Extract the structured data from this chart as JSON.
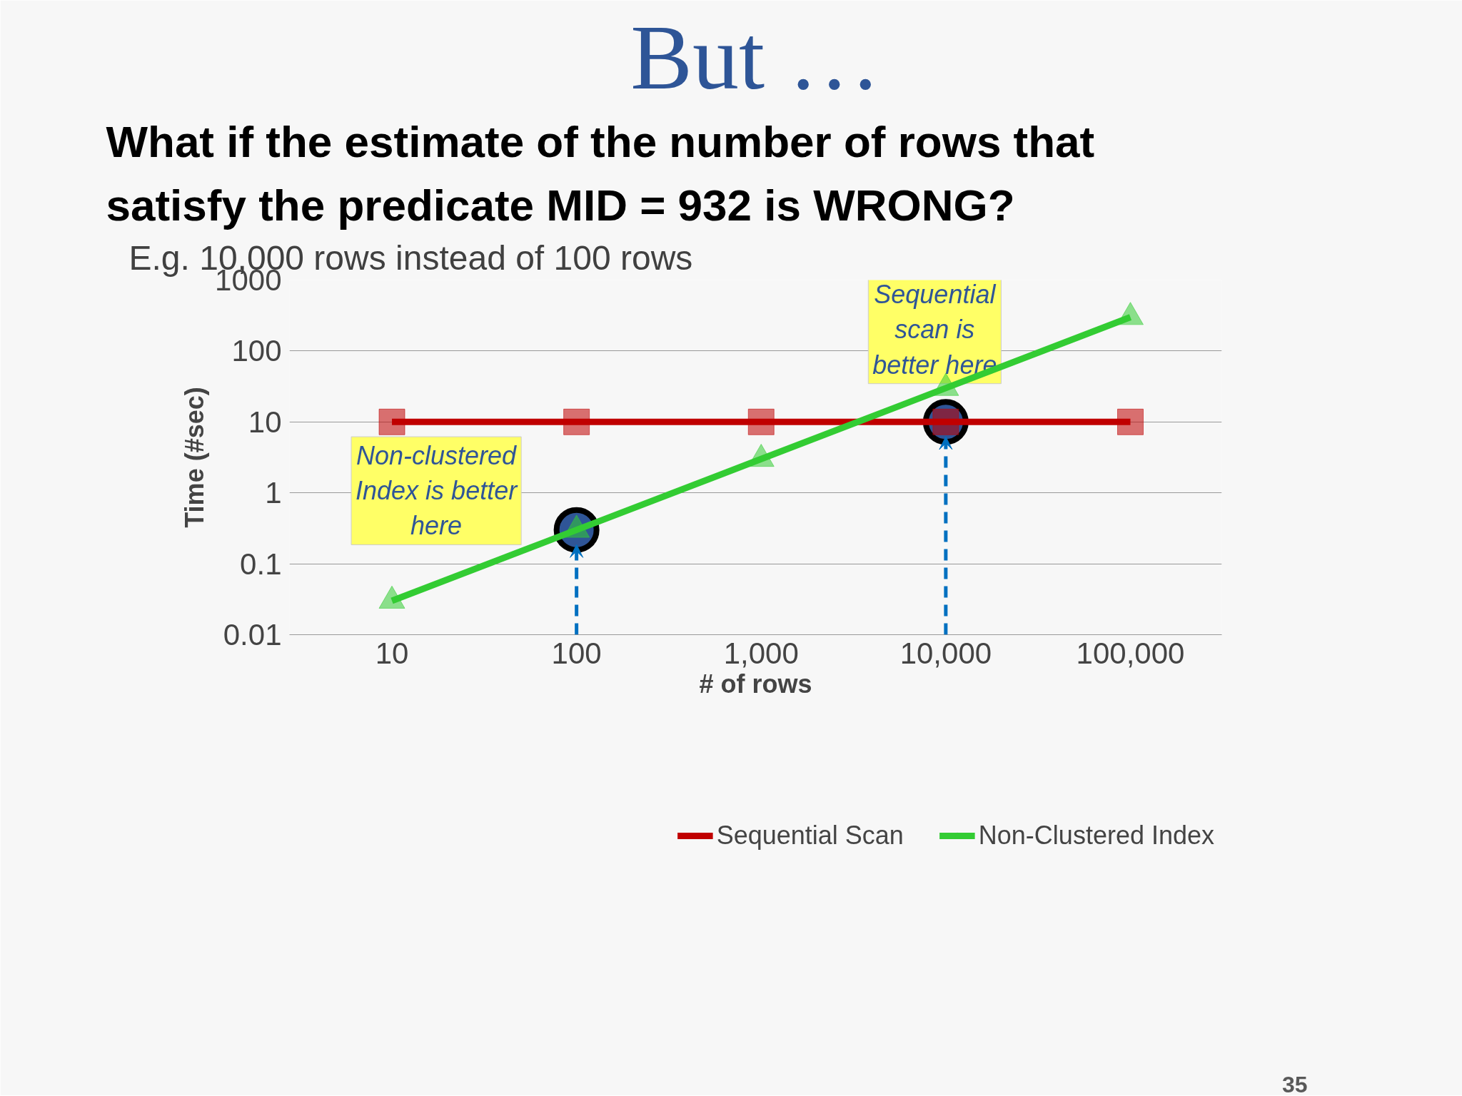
{
  "chart_data": {
    "type": "line",
    "title": "But …",
    "subtitle": "What if the estimate of the number of rows that satisfy the predicate MID = 932 is WRONG?",
    "xlabel": "# of rows",
    "ylabel": "Time (#sec)",
    "categories": [
      "10",
      "100",
      "1,000",
      "10,000",
      "100,000"
    ],
    "series": [
      {
        "name": "Sequential Scan",
        "color": "#c00000",
        "values": [
          10,
          10,
          10,
          10,
          10
        ],
        "marker": "square"
      },
      {
        "name": "Non-Clustered Index",
        "color": "#33cc33",
        "values": [
          0.03,
          0.3,
          3,
          30,
          300
        ],
        "marker": "triangle"
      },
      {
        "type": "scatter",
        "color": "#2f5597",
        "x": [
          "100",
          "10,000"
        ],
        "values": [
          0.3,
          10
        ],
        "marker": "circle"
      }
    ],
    "log": "y",
    "ylim": [
      0.01,
      1000
    ],
    "yticks": [
      0.01,
      0.1,
      1,
      10,
      100,
      1000
    ],
    "grid": "y",
    "legend": "bottom",
    "annotations": [
      "E.g. 10,000 rows instead of 100 rows",
      "Non-clustered Index is better here",
      "Sequential scan is better here",
      "35"
    ]
  }
}
